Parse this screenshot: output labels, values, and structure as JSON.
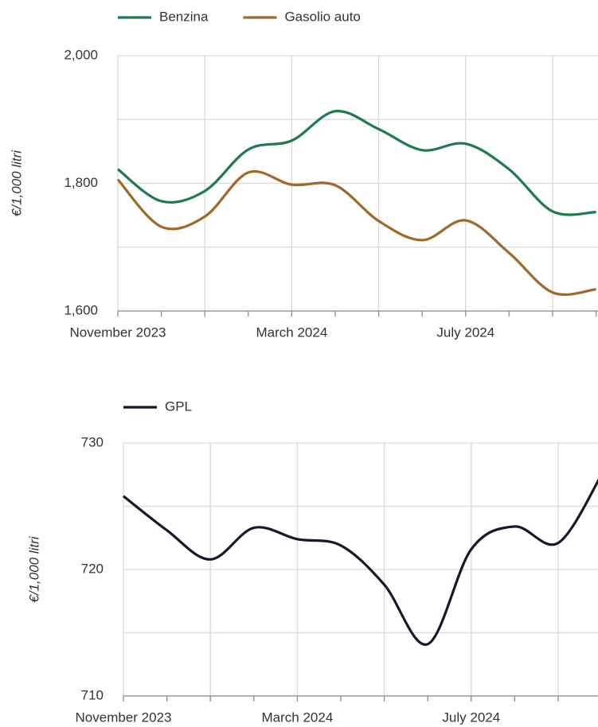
{
  "chart_data": [
    {
      "type": "line",
      "y_label": "€/1,000 litri",
      "categories": [
        "November 2023",
        null,
        null,
        null,
        "March 2024",
        null,
        null,
        null,
        "July 2024",
        null,
        null,
        null
      ],
      "series": [
        {
          "name": "Benzina",
          "color": "#1f7a4f",
          "values": [
            1822,
            1772,
            1788,
            1853,
            1867,
            1913,
            1885,
            1852,
            1862,
            1822,
            1756,
            1755
          ]
        },
        {
          "name": "Gasolio auto",
          "color": "#a0692a",
          "values": [
            1806,
            1732,
            1748,
            1817,
            1798,
            1797,
            1741,
            1711,
            1742,
            1691,
            1629,
            1634
          ]
        }
      ],
      "ylim": [
        1600,
        2000
      ],
      "yticks": [
        {
          "value": 1600,
          "label": "1,600"
        },
        {
          "value": 1800,
          "label": "1,800"
        },
        {
          "value": 2000,
          "label": "2,000"
        }
      ],
      "grid": true,
      "legend": "top"
    },
    {
      "type": "line",
      "y_label": "€/1,000 litri",
      "categories": [
        "November 2023",
        null,
        null,
        null,
        "March 2024",
        null,
        null,
        null,
        "July 2024",
        null,
        null,
        null
      ],
      "series": [
        {
          "name": "GPL",
          "color": "#141a2e",
          "values": [
            725.8,
            723.1,
            720.8,
            723.3,
            722.4,
            721.9,
            718.8,
            714.1,
            721.6,
            723.4,
            722.1,
            727.5
          ]
        }
      ],
      "ylim": [
        710,
        730
      ],
      "yticks": [
        710,
        720,
        730
      ],
      "grid": true,
      "legend": "top"
    }
  ]
}
